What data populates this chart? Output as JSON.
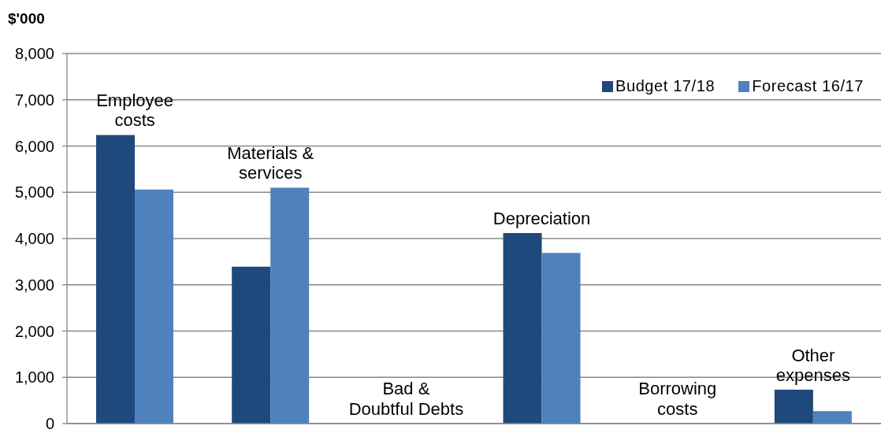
{
  "chart_data": {
    "type": "bar",
    "ylabel": "$'000",
    "categories": [
      "Employee costs",
      "Materials & services",
      "Bad & Doubtful Debts",
      "Depreciation",
      "Borrowing costs",
      "Other expenses"
    ],
    "series": [
      {
        "name": "Budget 17/18",
        "color": "#1f497d",
        "values": [
          6240,
          3390,
          0,
          4120,
          0,
          730
        ]
      },
      {
        "name": "Forecast 16/17",
        "color": "#4f81bd",
        "values": [
          5060,
          5100,
          0,
          3690,
          0,
          270
        ]
      }
    ],
    "ylim": [
      0,
      8000
    ],
    "yticks": [
      0,
      {
        "value": 1000,
        "label": "1,000"
      },
      {
        "value": 2000,
        "label": "2,000"
      },
      {
        "value": 3000,
        "label": "3,000"
      },
      {
        "value": 4000,
        "label": "4,000"
      },
      {
        "value": 5000,
        "label": "5,000"
      },
      {
        "value": 6000,
        "label": "6,000"
      },
      {
        "value": 7000,
        "label": "7,000"
      },
      {
        "value": 8000,
        "label": "8,000"
      }
    ],
    "grid": "y",
    "legend": "top right",
    "tick_labels": "y"
  }
}
